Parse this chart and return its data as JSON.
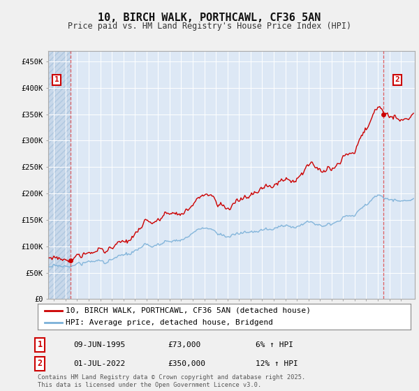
{
  "title": "10, BIRCH WALK, PORTHCAWL, CF36 5AN",
  "subtitle": "Price paid vs. HM Land Registry's House Price Index (HPI)",
  "ylim": [
    0,
    470000
  ],
  "yticks": [
    0,
    50000,
    100000,
    150000,
    200000,
    250000,
    300000,
    350000,
    400000,
    450000
  ],
  "ytick_labels": [
    "£0",
    "£50K",
    "£100K",
    "£150K",
    "£200K",
    "£250K",
    "£300K",
    "£350K",
    "£400K",
    "£450K"
  ],
  "background_color": "#f0f0f0",
  "plot_bg_color": "#dde8f5",
  "hatch_color": "#c8d8ea",
  "hpi_color": "#7ab0d8",
  "price_color": "#cc0000",
  "vline_color": "#dd4444",
  "sale1_date": "09-JUN-1995",
  "sale1_price": 73000,
  "sale1_hpi": "6% ↑ HPI",
  "sale2_date": "01-JUL-2022",
  "sale2_price": 350000,
  "sale2_hpi": "12% ↑ HPI",
  "legend_label1": "10, BIRCH WALK, PORTHCAWL, CF36 5AN (detached house)",
  "legend_label2": "HPI: Average price, detached house, Bridgend",
  "footer": "Contains HM Land Registry data © Crown copyright and database right 2025.\nThis data is licensed under the Open Government Licence v3.0.",
  "sale1_x": 1995.44,
  "sale2_x": 2022.5,
  "xmin": 1993.5,
  "xmax": 2025.2
}
